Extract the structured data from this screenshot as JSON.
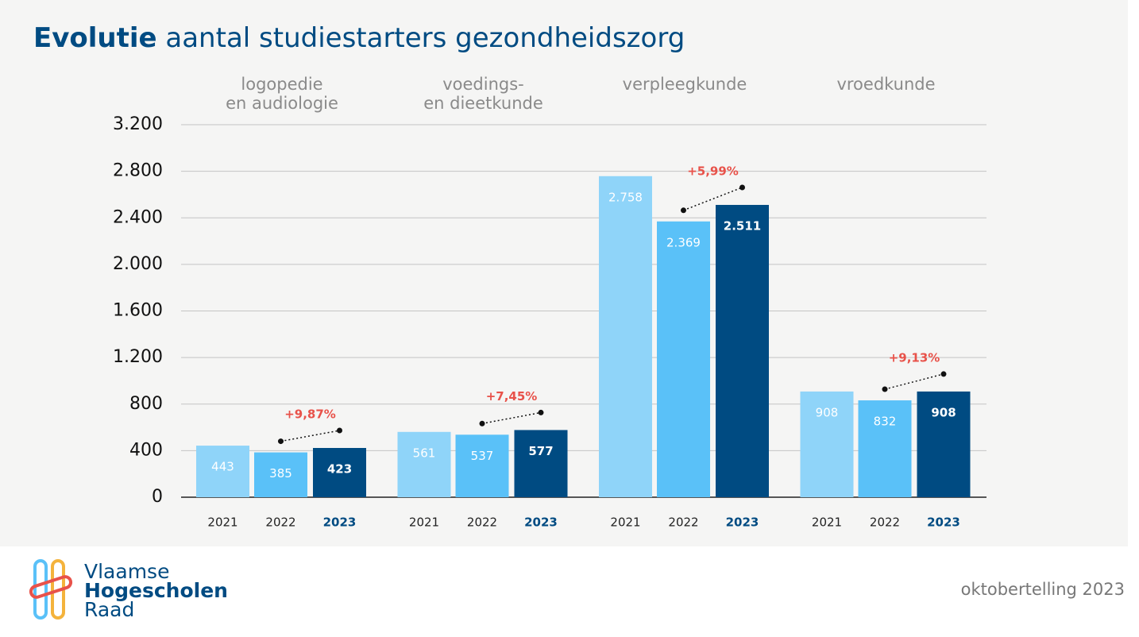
{
  "header": {
    "title_emphasis": "Evolutie",
    "title": "aantal studiestarters gezondheidszorg"
  },
  "chart_data": {
    "type": "bar",
    "categories": [
      "logopedie\nen audiologie",
      "voedings-\nen dieetkunde",
      "verpleegkunde",
      "vroedkunde"
    ],
    "series": [
      {
        "name": "2021",
        "color": "#8fd4f9",
        "values": [
          443,
          561,
          2758,
          908
        ],
        "value_labels": [
          "443",
          "561",
          "2.758",
          "908"
        ]
      },
      {
        "name": "2022",
        "color": "#5ac1f8",
        "values": [
          385,
          537,
          2369,
          832
        ],
        "value_labels": [
          "385",
          "537",
          "2.369",
          "832"
        ]
      },
      {
        "name": "2023",
        "color": "#004b82",
        "values": [
          423,
          577,
          2511,
          908
        ],
        "value_labels": [
          "423",
          "577",
          "2.511",
          "908"
        ],
        "change_labels": [
          "+9,87%",
          "+7,45%",
          "+5,99%",
          "+9,13%"
        ]
      }
    ],
    "ylim": [
      0,
      3200
    ],
    "yticks": [
      0,
      400,
      800,
      {
        "value": 1200,
        "label": "1.200"
      },
      {
        "value": 1600,
        "label": "1.600"
      },
      {
        "value": 2000,
        "label": "2.000"
      },
      {
        "value": 2400,
        "label": "2.400"
      },
      {
        "value": 2800,
        "label": "2.800"
      },
      {
        "value": 3200,
        "label": "3.200"
      }
    ],
    "grid": true
  },
  "footer": {
    "logo": [
      "Vlaamse",
      "Hogescholen",
      "Raad"
    ],
    "source": "oktobertelling 2023"
  }
}
